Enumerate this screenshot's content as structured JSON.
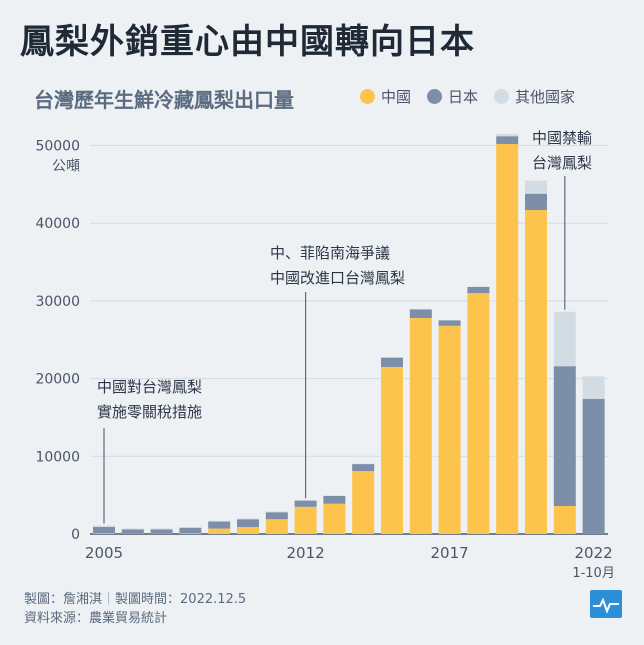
{
  "title": "鳳梨外銷重心由中國轉向日本",
  "subtitle": "台灣歷年生鮮冷藏鳳梨出口量",
  "legend": [
    {
      "label": "中國",
      "color": "#fcc44c"
    },
    {
      "label": "日本",
      "color": "#7d8fa8"
    },
    {
      "label": "其他國家",
      "color": "#d3dbe3"
    }
  ],
  "chart_data": {
    "type": "bar",
    "stacked": true,
    "ylabel": "公噸",
    "ylim": [
      0,
      52000
    ],
    "yticks": [
      0,
      10000,
      20000,
      30000,
      40000,
      50000
    ],
    "categories": [
      "2005",
      "2006",
      "2007",
      "2008",
      "2009",
      "2010",
      "2011",
      "2012",
      "2013",
      "2014",
      "2015",
      "2016",
      "2017",
      "2018",
      "2019",
      "2020",
      "2021",
      "2022 1-10月"
    ],
    "x_tick_labels": [
      {
        "index": 0,
        "label": "2005"
      },
      {
        "index": 7,
        "label": "2012"
      },
      {
        "index": 12,
        "label": "2017"
      },
      {
        "index": 17,
        "label": "2022",
        "sublabel": "1-10月"
      }
    ],
    "series": [
      {
        "name": "中國",
        "color": "#fcc44c",
        "values": [
          100,
          50,
          50,
          100,
          700,
          900,
          1900,
          3500,
          3900,
          8100,
          21500,
          27800,
          26800,
          31000,
          50200,
          41700,
          3600,
          0
        ]
      },
      {
        "name": "日本",
        "color": "#7d8fa8",
        "values": [
          800,
          550,
          550,
          700,
          900,
          1000,
          900,
          800,
          1000,
          900,
          1200,
          1100,
          700,
          800,
          1000,
          2100,
          18000,
          17400
        ]
      },
      {
        "name": "其他國家",
        "color": "#d3dbe3",
        "values": [
          200,
          100,
          100,
          100,
          100,
          100,
          100,
          50,
          50,
          50,
          50,
          50,
          50,
          50,
          300,
          1700,
          7000,
          2900
        ]
      }
    ],
    "annotations": [
      {
        "index": 0,
        "lines": [
          "中國對台灣鳳梨",
          "實施零關稅措施"
        ]
      },
      {
        "index": 7,
        "lines": [
          "中、菲陷南海爭議",
          "中國改進口台灣鳳梨"
        ]
      },
      {
        "index": 16,
        "lines": [
          "中國禁輸",
          "台灣鳳梨"
        ]
      }
    ]
  },
  "footer": {
    "line1_a": "製圖：詹湘淇",
    "line1_sep": "｜",
    "line1_b": "製圖時間：2022.12.5",
    "line2": "資料來源：農業貿易統計"
  }
}
